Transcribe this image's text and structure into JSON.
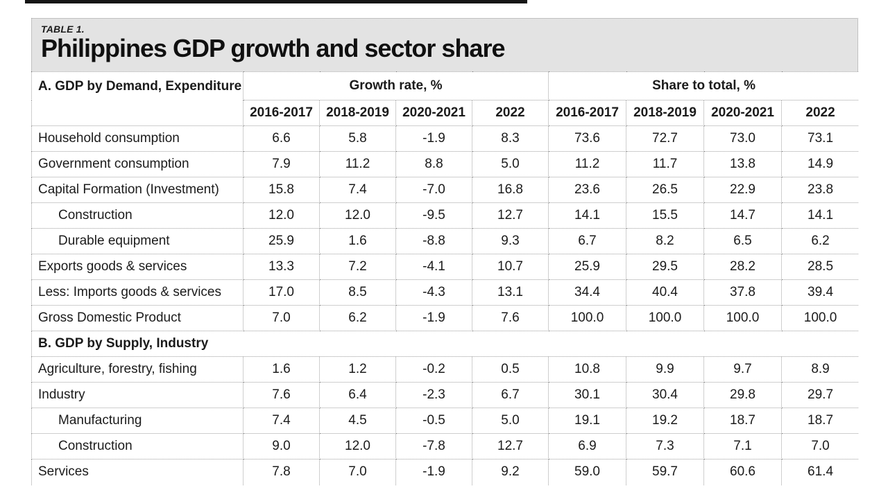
{
  "page": {
    "kicker": "TABLE 1.",
    "title": "Philippines GDP growth and sector share"
  },
  "colors": {
    "title_band_bg": "#e3e3e3",
    "grid_border": "#9e9e9e",
    "text": "#1b1b1b",
    "top_rule": "#151515",
    "background": "#ffffff"
  },
  "chart_data": {
    "type": "table",
    "title": "Philippines GDP growth and sector share",
    "kicker": "TABLE 1.",
    "row_header": "A. GDP by Demand, Expenditure",
    "groups": [
      {
        "label": "Growth rate, %",
        "years": [
          "2016-2017",
          "2018-2019",
          "2020-2021",
          "2022"
        ]
      },
      {
        "label": "Share to total, %",
        "years": [
          "2016-2017",
          "2018-2019",
          "2020-2021",
          "2022"
        ]
      }
    ],
    "sections": [
      {
        "header": null,
        "rows": [
          {
            "label": "Household consumption",
            "indent": false,
            "growth": [
              "6.6",
              "5.8",
              "-1.9",
              "8.3"
            ],
            "share": [
              "73.6",
              "72.7",
              "73.0",
              "73.1"
            ]
          },
          {
            "label": "Government consumption",
            "indent": false,
            "growth": [
              "7.9",
              "11.2",
              "8.8",
              "5.0"
            ],
            "share": [
              "11.2",
              "11.7",
              "13.8",
              "14.9"
            ]
          },
          {
            "label": "Capital Formation (Investment)",
            "indent": false,
            "growth": [
              "15.8",
              "7.4",
              "-7.0",
              "16.8"
            ],
            "share": [
              "23.6",
              "26.5",
              "22.9",
              "23.8"
            ]
          },
          {
            "label": "Construction",
            "indent": true,
            "growth": [
              "12.0",
              "12.0",
              "-9.5",
              "12.7"
            ],
            "share": [
              "14.1",
              "15.5",
              "14.7",
              "14.1"
            ]
          },
          {
            "label": "Durable equipment",
            "indent": true,
            "growth": [
              "25.9",
              "1.6",
              "-8.8",
              "9.3"
            ],
            "share": [
              "6.7",
              "8.2",
              "6.5",
              "6.2"
            ]
          },
          {
            "label": "Exports goods & services",
            "indent": false,
            "growth": [
              "13.3",
              "7.2",
              "-4.1",
              "10.7"
            ],
            "share": [
              "25.9",
              "29.5",
              "28.2",
              "28.5"
            ]
          },
          {
            "label": "Less: Imports goods & services",
            "indent": false,
            "growth": [
              "17.0",
              "8.5",
              "-4.3",
              "13.1"
            ],
            "share": [
              "34.4",
              "40.4",
              "37.8",
              "39.4"
            ]
          },
          {
            "label": "Gross Domestic Product",
            "indent": false,
            "growth": [
              "7.0",
              "6.2",
              "-1.9",
              "7.6"
            ],
            "share": [
              "100.0",
              "100.0",
              "100.0",
              "100.0"
            ]
          }
        ]
      },
      {
        "header": "B. GDP by Supply, Industry",
        "rows": [
          {
            "label": "Agriculture, forestry, fishing",
            "indent": false,
            "growth": [
              "1.6",
              "1.2",
              "-0.2",
              "0.5"
            ],
            "share": [
              "10.8",
              "9.9",
              "9.7",
              "8.9"
            ]
          },
          {
            "label": "Industry",
            "indent": false,
            "growth": [
              "7.6",
              "6.4",
              "-2.3",
              "6.7"
            ],
            "share": [
              "30.1",
              "30.4",
              "29.8",
              "29.7"
            ]
          },
          {
            "label": "Manufacturing",
            "indent": true,
            "growth": [
              "7.4",
              "4.5",
              "-0.5",
              "5.0"
            ],
            "share": [
              "19.1",
              "19.2",
              "18.7",
              "18.7"
            ]
          },
          {
            "label": "Construction",
            "indent": true,
            "growth": [
              "9.0",
              "12.0",
              "-7.8",
              "12.7"
            ],
            "share": [
              "6.9",
              "7.3",
              "7.1",
              "7.0"
            ]
          },
          {
            "label": "Services",
            "indent": false,
            "growth": [
              "7.8",
              "7.0",
              "-1.9",
              "9.2"
            ],
            "share": [
              "59.0",
              "59.7",
              "60.6",
              "61.4"
            ]
          }
        ]
      }
    ]
  }
}
